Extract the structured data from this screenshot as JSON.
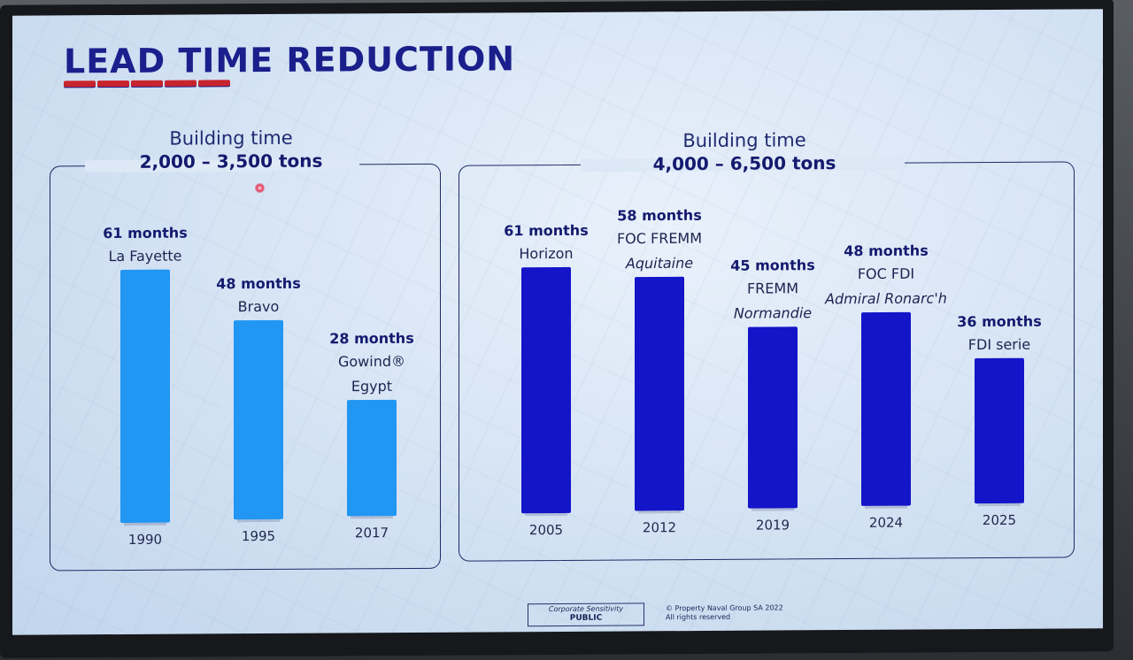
{
  "title": "LEAD TIME REDUCTION",
  "footer": {
    "sensitivity_label": "Corporate Sensitivity",
    "sensitivity_value": "PUBLIC",
    "copyright_line1": "© Property Naval Group SA 2022",
    "copyright_line2": "All rights reserved"
  },
  "colors": {
    "title": "#1a1f8c",
    "accent_red": "#c8242e",
    "bar_light": "#2196f3",
    "bar_dark": "#1414c8",
    "text_dark": "#141a6e"
  },
  "chart_data": [
    {
      "type": "bar",
      "title": "Building time",
      "subtitle": "2,000 – 3,500 tons",
      "categories": [
        "1990",
        "1995",
        "2017"
      ],
      "values": [
        61,
        48,
        28
      ],
      "value_unit": "months",
      "value_labels": [
        "61 months",
        "48 months",
        "28 months"
      ],
      "bar_labels": [
        {
          "line1": "La Fayette",
          "line2": "",
          "line2_italic": false
        },
        {
          "line1": "Bravo",
          "line2": "",
          "line2_italic": false
        },
        {
          "line1": "Gowind®",
          "line2": "Egypt",
          "line2_italic": false
        }
      ],
      "ylim": [
        0,
        61
      ],
      "grid": false,
      "color": "#2196f3"
    },
    {
      "type": "bar",
      "title": "Building time",
      "subtitle": "4,000 – 6,500 tons",
      "categories": [
        "2005",
        "2012",
        "2019",
        "2024",
        "2025"
      ],
      "values": [
        61,
        58,
        45,
        48,
        36
      ],
      "value_unit": "months",
      "value_labels": [
        "61 months",
        "58 months",
        "45 months",
        "48 months",
        "36 months"
      ],
      "bar_labels": [
        {
          "line1": "Horizon",
          "line2": "",
          "line2_italic": false
        },
        {
          "line1": "FOC FREMM",
          "line2": "Aquitaine",
          "line2_italic": true
        },
        {
          "line1": "FREMM",
          "line2": "Normandie",
          "line2_italic": true
        },
        {
          "line1": "FOC FDI",
          "line2": "Admiral Ronarc'h",
          "line2_italic": true
        },
        {
          "line1": "FDI serie",
          "line2": "",
          "line2_italic": false
        }
      ],
      "ylim": [
        0,
        61
      ],
      "grid": false,
      "color": "#1414c8"
    }
  ]
}
